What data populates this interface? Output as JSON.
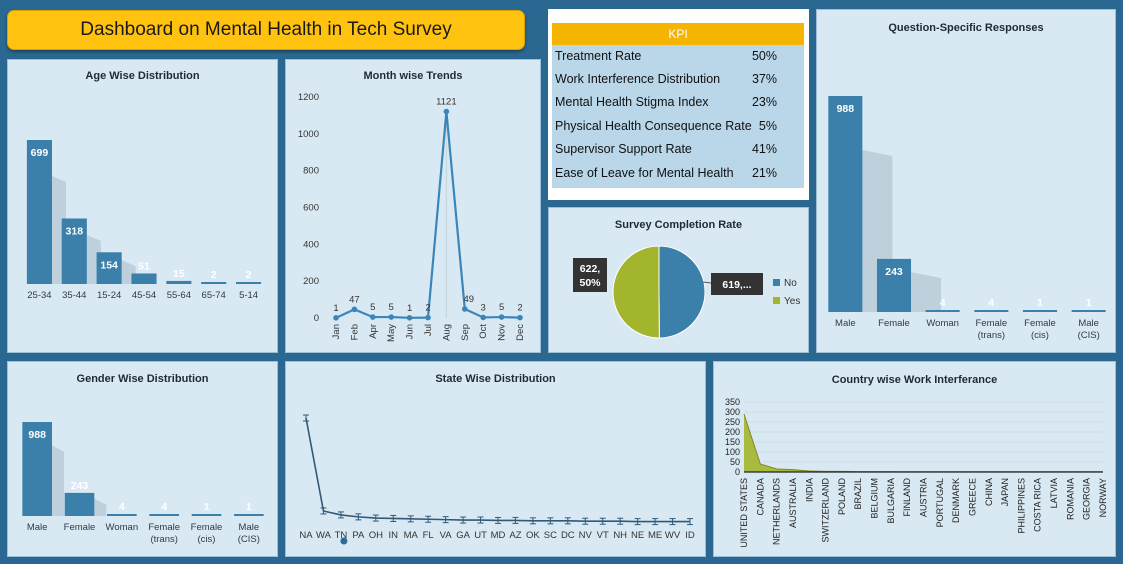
{
  "title": "Dashboard on Mental Health in Tech Survey",
  "kpi": {
    "header": "KPI",
    "rows": [
      {
        "label": "Treatment Rate",
        "value": "50%"
      },
      {
        "label": "Work Interference Distribution",
        "value": "37%"
      },
      {
        "label": "Mental Health Stigma Index",
        "value": "23%"
      },
      {
        "label": "Physical Health Consequence Rate",
        "value": "5%"
      },
      {
        "label": "Supervisor Support Rate",
        "value": "41%"
      },
      {
        "label": "Ease of Leave for Mental Health",
        "value": "21%"
      }
    ]
  },
  "colors": {
    "bar": "#3b7fab",
    "line": "#3b86b8",
    "olive": "#a3b52c",
    "title_bg": "#ffc20f",
    "kpi_header": "#f5b400"
  },
  "chart_data": [
    {
      "id": "age",
      "type": "bar",
      "title": "Age Wise Distribution",
      "categories": [
        "25-34",
        "35-44",
        "15-24",
        "45-54",
        "55-64",
        "65-74",
        "5-14"
      ],
      "values": [
        699,
        318,
        154,
        51,
        15,
        2,
        2
      ]
    },
    {
      "id": "month",
      "type": "line",
      "title": "Month wise Trends",
      "categories": [
        "Jan",
        "Feb",
        "Apr",
        "May",
        "Jun",
        "Jul",
        "Aug",
        "Sep",
        "Oct",
        "Nov",
        "Dec"
      ],
      "values": [
        1,
        47,
        5,
        5,
        1,
        2,
        1121,
        49,
        3,
        5,
        2
      ],
      "ylim": [
        0,
        1200
      ],
      "yticks": [
        0,
        200,
        400,
        600,
        800,
        1000,
        1200
      ]
    },
    {
      "id": "completion",
      "type": "pie",
      "title": "Survey Completion Rate",
      "slices": [
        {
          "name": "No",
          "value": 619,
          "label": "619,..."
        },
        {
          "name": "Yes",
          "value": 622,
          "label": "622, 50%"
        }
      ],
      "legend": "right"
    },
    {
      "id": "question",
      "type": "bar",
      "title": "Question-Specific Responses",
      "categories": [
        "Male",
        "Female",
        "Woman",
        "Female (trans)",
        "Female (cis)",
        "Male (CIS)"
      ],
      "values": [
        988,
        243,
        4,
        4,
        1,
        1
      ]
    },
    {
      "id": "gender",
      "type": "bar",
      "title": "Gender Wise Distribution",
      "categories": [
        "Male",
        "Female",
        "Woman",
        "Female (trans)",
        "Female (cis)",
        "Male (CIS)"
      ],
      "values": [
        988,
        243,
        4,
        4,
        1,
        1
      ]
    },
    {
      "id": "state",
      "type": "line",
      "title": "State Wise Distribution",
      "categories": [
        "NA",
        "WA",
        "TN",
        "PA",
        "OH",
        "IN",
        "MA",
        "FL",
        "VA",
        "GA",
        "UT",
        "MD",
        "AZ",
        "OK",
        "SC",
        "DC",
        "NV",
        "VT",
        "NH",
        "NE",
        "ME",
        "WV",
        "ID"
      ],
      "values": [
        264,
        28,
        18,
        13,
        10,
        9,
        8,
        7,
        6,
        5,
        5,
        4,
        4,
        3,
        3,
        3,
        2,
        2,
        2,
        1,
        1,
        1,
        1
      ]
    },
    {
      "id": "country",
      "type": "area",
      "title": "Country wise Work Interferance",
      "categories": [
        "UNITED STATES",
        "CANADA",
        "NETHERLANDS",
        "AUSTRALIA",
        "INDIA",
        "SWITZERLAND",
        "POLAND",
        "BRAZIL",
        "BELGIUM",
        "BULGARIA",
        "FINLAND",
        "AUSTRIA",
        "PORTUGAL",
        "DENMARK",
        "GREECE",
        "CHINA",
        "JAPAN",
        "PHILIPPINES",
        "COSTA RICA",
        "LATVIA",
        "ROMANIA",
        "GEORGIA",
        "NORWAY"
      ],
      "values": [
        290,
        40,
        15,
        12,
        5,
        3,
        3,
        2,
        2,
        2,
        1,
        1,
        1,
        1,
        1,
        1,
        1,
        1,
        1,
        1,
        1,
        1,
        1
      ],
      "ylim": [
        0,
        350
      ],
      "yticks": [
        0,
        50,
        100,
        150,
        200,
        250,
        300,
        350
      ]
    }
  ]
}
